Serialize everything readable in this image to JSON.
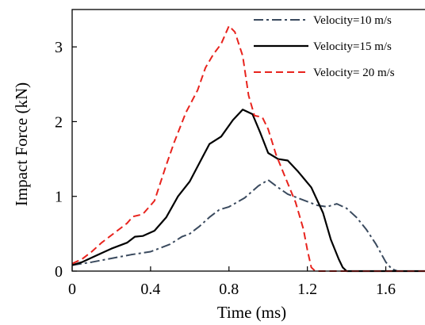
{
  "chart_data": {
    "type": "line",
    "title": "",
    "xlabel": "Time (ms)",
    "ylabel": "Impact  Force (kN)",
    "xlim": [
      0,
      1.8
    ],
    "ylim": [
      0,
      3.5
    ],
    "x_ticks": [
      0,
      0.4,
      0.8,
      1.2,
      1.6
    ],
    "x_tick_labels": [
      "0",
      "0.4",
      "0.8",
      "1.2",
      "1.6"
    ],
    "y_ticks": [
      0,
      1,
      2,
      3
    ],
    "y_tick_labels": [
      "0",
      "1",
      "2",
      "3"
    ],
    "grid": false,
    "legend_position": "top-right",
    "series": [
      {
        "name": "Velocity=10 m/s",
        "color": "#3a4a5e",
        "dash": "dash-dot",
        "points": [
          [
            0,
            0.08
          ],
          [
            0.05,
            0.1
          ],
          [
            0.1,
            0.12
          ],
          [
            0.2,
            0.17
          ],
          [
            0.3,
            0.22
          ],
          [
            0.4,
            0.26
          ],
          [
            0.5,
            0.36
          ],
          [
            0.56,
            0.46
          ],
          [
            0.6,
            0.5
          ],
          [
            0.65,
            0.6
          ],
          [
            0.7,
            0.72
          ],
          [
            0.75,
            0.82
          ],
          [
            0.8,
            0.86
          ],
          [
            0.88,
            0.98
          ],
          [
            0.95,
            1.14
          ],
          [
            1.0,
            1.22
          ],
          [
            1.05,
            1.12
          ],
          [
            1.1,
            1.03
          ],
          [
            1.18,
            0.95
          ],
          [
            1.25,
            0.88
          ],
          [
            1.3,
            0.86
          ],
          [
            1.35,
            0.9
          ],
          [
            1.4,
            0.84
          ],
          [
            1.45,
            0.72
          ],
          [
            1.5,
            0.56
          ],
          [
            1.55,
            0.36
          ],
          [
            1.6,
            0.12
          ],
          [
            1.63,
            0.03
          ],
          [
            1.66,
            0.0
          ],
          [
            1.8,
            0.0
          ]
        ]
      },
      {
        "name": "Velocity=15 m/s",
        "color": "#000000",
        "dash": "solid",
        "points": [
          [
            0,
            0.08
          ],
          [
            0.05,
            0.12
          ],
          [
            0.1,
            0.18
          ],
          [
            0.2,
            0.3
          ],
          [
            0.28,
            0.38
          ],
          [
            0.32,
            0.46
          ],
          [
            0.36,
            0.47
          ],
          [
            0.42,
            0.54
          ],
          [
            0.48,
            0.72
          ],
          [
            0.54,
            1.0
          ],
          [
            0.6,
            1.2
          ],
          [
            0.65,
            1.45
          ],
          [
            0.7,
            1.7
          ],
          [
            0.76,
            1.8
          ],
          [
            0.82,
            2.02
          ],
          [
            0.87,
            2.16
          ],
          [
            0.92,
            2.1
          ],
          [
            0.96,
            1.85
          ],
          [
            1.0,
            1.58
          ],
          [
            1.05,
            1.5
          ],
          [
            1.1,
            1.48
          ],
          [
            1.15,
            1.34
          ],
          [
            1.22,
            1.12
          ],
          [
            1.28,
            0.78
          ],
          [
            1.32,
            0.42
          ],
          [
            1.36,
            0.16
          ],
          [
            1.38,
            0.05
          ],
          [
            1.4,
            0.0
          ],
          [
            1.8,
            0.0
          ]
        ]
      },
      {
        "name": "Velocity= 20 m/s",
        "color": "#e8231d",
        "dash": "dashed",
        "points": [
          [
            0,
            0.1
          ],
          [
            0.05,
            0.16
          ],
          [
            0.1,
            0.26
          ],
          [
            0.15,
            0.38
          ],
          [
            0.22,
            0.52
          ],
          [
            0.28,
            0.64
          ],
          [
            0.31,
            0.73
          ],
          [
            0.36,
            0.76
          ],
          [
            0.42,
            0.94
          ],
          [
            0.48,
            1.42
          ],
          [
            0.52,
            1.72
          ],
          [
            0.58,
            2.12
          ],
          [
            0.64,
            2.42
          ],
          [
            0.68,
            2.72
          ],
          [
            0.72,
            2.9
          ],
          [
            0.76,
            3.04
          ],
          [
            0.8,
            3.28
          ],
          [
            0.83,
            3.2
          ],
          [
            0.87,
            2.88
          ],
          [
            0.9,
            2.35
          ],
          [
            0.93,
            2.08
          ],
          [
            0.97,
            2.06
          ],
          [
            1.0,
            1.9
          ],
          [
            1.04,
            1.56
          ],
          [
            1.08,
            1.3
          ],
          [
            1.14,
            0.92
          ],
          [
            1.18,
            0.56
          ],
          [
            1.2,
            0.28
          ],
          [
            1.22,
            0.05
          ],
          [
            1.24,
            0.0
          ],
          [
            1.8,
            0.0
          ]
        ]
      }
    ]
  }
}
